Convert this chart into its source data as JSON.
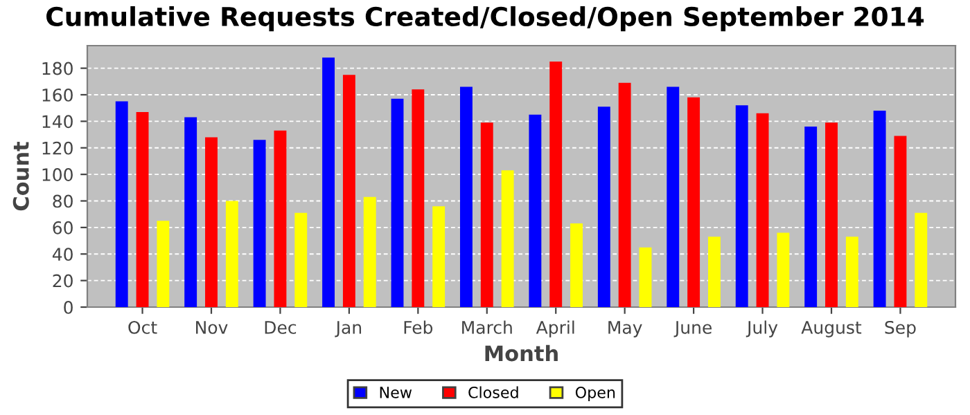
{
  "chart_data": {
    "type": "bar",
    "title": "Cumulative Requests Created/Closed/Open September 2014",
    "xlabel": "Month",
    "ylabel": "Count",
    "categories": [
      "Oct",
      "Nov",
      "Dec",
      "Jan",
      "Feb",
      "March",
      "April",
      "May",
      "June",
      "July",
      "August",
      "Sep"
    ],
    "series": [
      {
        "name": "New",
        "color": "#0000ff",
        "values": [
          155,
          143,
          126,
          188,
          157,
          166,
          145,
          151,
          166,
          152,
          136,
          148
        ]
      },
      {
        "name": "Closed",
        "color": "#ff0000",
        "values": [
          147,
          128,
          133,
          175,
          164,
          139,
          185,
          169,
          158,
          146,
          139,
          129
        ]
      },
      {
        "name": "Open",
        "color": "#ffff00",
        "values": [
          65,
          80,
          71,
          83,
          76,
          103,
          63,
          45,
          53,
          56,
          53,
          71
        ]
      }
    ],
    "ylim": [
      0,
      197
    ],
    "yticks": [
      0,
      20,
      40,
      60,
      80,
      100,
      120,
      140,
      160,
      180
    ],
    "grid": "y",
    "legend": "bottom"
  }
}
